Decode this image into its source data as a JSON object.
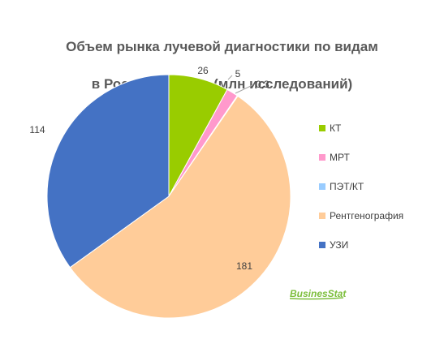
{
  "chart_data": {
    "type": "pie",
    "title_line1": "Объем рынка лучевой диагностики по видам",
    "title_line2": "в России в 2025 г (млн исследований)",
    "categories": [
      "КТ",
      "МРТ",
      "ПЭТ/КТ",
      "Рентгенография",
      "УЗИ"
    ],
    "values": [
      26,
      5,
      0.3,
      181,
      114
    ],
    "labels": [
      "26",
      "5",
      "0,3",
      "181",
      "114"
    ],
    "colors": [
      "#99cc00",
      "#ff99cc",
      "#99ccff",
      "#ffcc99",
      "#4472c4"
    ],
    "legend_position": "right",
    "start_angle": "top",
    "direction": "clockwise"
  },
  "watermark": {
    "text": "BusinesStat",
    "color": "#7cbe3b"
  }
}
